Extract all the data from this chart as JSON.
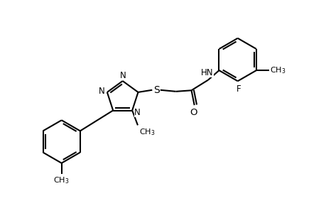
{
  "bg_color": "#ffffff",
  "line_color": "#000000",
  "lw": 1.5,
  "fs": 8.5,
  "xlim": [
    0,
    9.2
  ],
  "ylim": [
    0,
    6.0
  ]
}
